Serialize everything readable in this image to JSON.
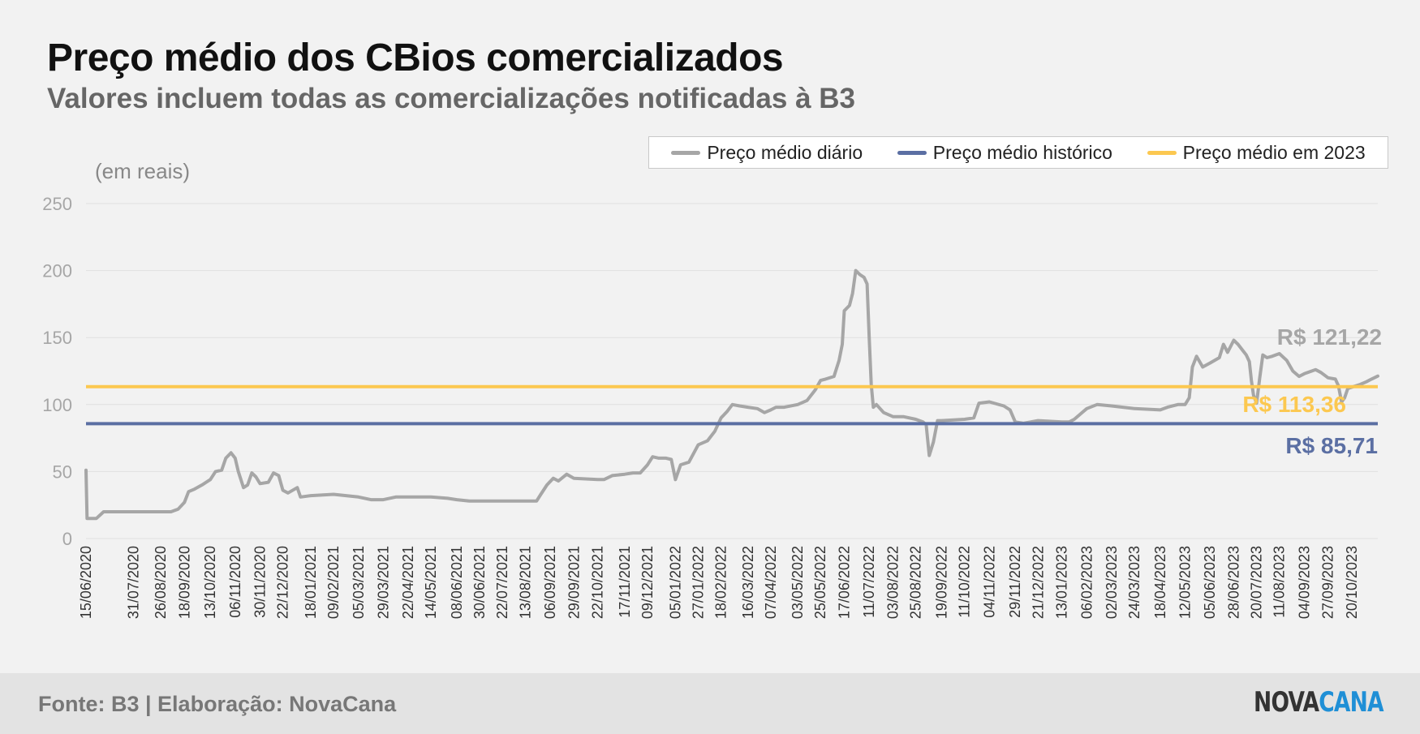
{
  "title": "Preço médio dos CBios comercializados",
  "subtitle": "Valores incluem todas as comercializações notificadas à B3",
  "units_label": "(em reais)",
  "legend": [
    {
      "label": "Preço médio diário",
      "color": "#a6a6a6"
    },
    {
      "label": "Preço médio histórico",
      "color": "#5b6fa3"
    },
    {
      "label": "Preço médio em 2023",
      "color": "#fcc850"
    }
  ],
  "footer": {
    "source": "Fonte: B3 | Elaboração: NovaCana",
    "logo_part1": "NOVA",
    "logo_part2": "CANA"
  },
  "colors": {
    "daily": "#a6a6a6",
    "historical": "#5b6fa3",
    "year2023": "#fcc850",
    "grid": "#e0e0e0",
    "tick_text": "#a6a6a6"
  },
  "chart_data": {
    "type": "line",
    "ylim": [
      0,
      250
    ],
    "yticks": [
      0,
      50,
      100,
      150,
      200,
      250
    ],
    "grid": true,
    "legend_position": "top-right",
    "x_start": "15/06/2020",
    "x_end": "14/11/2023",
    "xtick_labels": [
      "15/06/2020",
      "31/07/2020",
      "26/08/2020",
      "18/09/2020",
      "13/10/2020",
      "06/11/2020",
      "30/11/2020",
      "22/12/2020",
      "18/01/2021",
      "09/02/2021",
      "05/03/2021",
      "29/03/2021",
      "22/04/2021",
      "14/05/2021",
      "08/06/2021",
      "30/06/2021",
      "22/07/2021",
      "13/08/2021",
      "06/09/2021",
      "29/09/2021",
      "22/10/2021",
      "17/11/2021",
      "09/12/2021",
      "05/01/2022",
      "27/01/2022",
      "18/02/2022",
      "16/03/2022",
      "07/04/2022",
      "03/05/2022",
      "25/05/2022",
      "17/06/2022",
      "11/07/2022",
      "03/08/2022",
      "25/08/2022",
      "19/09/2022",
      "11/10/2022",
      "04/11/2022",
      "29/11/2022",
      "21/12/2022",
      "13/01/2023",
      "06/02/2023",
      "02/03/2023",
      "24/03/2023",
      "18/04/2023",
      "12/05/2023",
      "05/06/2023",
      "28/06/2023",
      "20/07/2023",
      "11/08/2023",
      "04/09/2023",
      "27/09/2023",
      "20/10/2023"
    ],
    "series": [
      {
        "name": "Preço médio diário",
        "points": [
          [
            "15/06/2020",
            51
          ],
          [
            "16/06/2020",
            15
          ],
          [
            "25/06/2020",
            15
          ],
          [
            "02/07/2020",
            20
          ],
          [
            "31/07/2020",
            20
          ],
          [
            "26/08/2020",
            20
          ],
          [
            "05/09/2020",
            20
          ],
          [
            "12/09/2020",
            22
          ],
          [
            "18/09/2020",
            27
          ],
          [
            "22/09/2020",
            35
          ],
          [
            "28/09/2020",
            37
          ],
          [
            "05/10/2020",
            40
          ],
          [
            "13/10/2020",
            44
          ],
          [
            "18/10/2020",
            50
          ],
          [
            "24/10/2020",
            51
          ],
          [
            "28/10/2020",
            60
          ],
          [
            "02/11/2020",
            64
          ],
          [
            "06/11/2020",
            60
          ],
          [
            "09/11/2020",
            50
          ],
          [
            "14/11/2020",
            38
          ],
          [
            "18/11/2020",
            40
          ],
          [
            "22/11/2020",
            49
          ],
          [
            "26/11/2020",
            46
          ],
          [
            "30/11/2020",
            41
          ],
          [
            "08/12/2020",
            42
          ],
          [
            "13/12/2020",
            49
          ],
          [
            "18/12/2020",
            47
          ],
          [
            "22/12/2020",
            36
          ],
          [
            "27/12/2020",
            34
          ],
          [
            "05/01/2021",
            38
          ],
          [
            "08/01/2021",
            31
          ],
          [
            "18/01/2021",
            32
          ],
          [
            "09/02/2021",
            33
          ],
          [
            "05/03/2021",
            31
          ],
          [
            "17/03/2021",
            29
          ],
          [
            "29/03/2021",
            29
          ],
          [
            "10/04/2021",
            31
          ],
          [
            "22/04/2021",
            31
          ],
          [
            "14/05/2021",
            31
          ],
          [
            "30/05/2021",
            30
          ],
          [
            "08/06/2021",
            29
          ],
          [
            "20/06/2021",
            28
          ],
          [
            "30/06/2021",
            28
          ],
          [
            "22/07/2021",
            28
          ],
          [
            "13/08/2021",
            28
          ],
          [
            "24/08/2021",
            28
          ],
          [
            "28/08/2021",
            33
          ],
          [
            "03/09/2021",
            40
          ],
          [
            "09/09/2021",
            45
          ],
          [
            "14/09/2021",
            43
          ],
          [
            "22/09/2021",
            48
          ],
          [
            "29/09/2021",
            45
          ],
          [
            "22/10/2021",
            44
          ],
          [
            "28/10/2021",
            44
          ],
          [
            "05/11/2021",
            47
          ],
          [
            "17/11/2021",
            48
          ],
          [
            "25/11/2021",
            49
          ],
          [
            "02/12/2021",
            49
          ],
          [
            "09/12/2021",
            55
          ],
          [
            "14/12/2021",
            61
          ],
          [
            "20/12/2021",
            60
          ],
          [
            "27/12/2021",
            60
          ],
          [
            "01/01/2022",
            59
          ],
          [
            "05/01/2022",
            44
          ],
          [
            "10/01/2022",
            55
          ],
          [
            "18/01/2022",
            57
          ],
          [
            "27/01/2022",
            70
          ],
          [
            "05/02/2022",
            73
          ],
          [
            "12/02/2022",
            80
          ],
          [
            "18/02/2022",
            90
          ],
          [
            "24/02/2022",
            95
          ],
          [
            "01/03/2022",
            100
          ],
          [
            "08/03/2022",
            99
          ],
          [
            "16/03/2022",
            98
          ],
          [
            "25/03/2022",
            97
          ],
          [
            "01/04/2022",
            94
          ],
          [
            "07/04/2022",
            96
          ],
          [
            "12/04/2022",
            98
          ],
          [
            "20/04/2022",
            98
          ],
          [
            "03/05/2022",
            100
          ],
          [
            "12/05/2022",
            103
          ],
          [
            "20/05/2022",
            111
          ],
          [
            "25/05/2022",
            118
          ],
          [
            "30/05/2022",
            119
          ],
          [
            "07/06/2022",
            121
          ],
          [
            "12/06/2022",
            133
          ],
          [
            "15/06/2022",
            145
          ],
          [
            "17/06/2022",
            170
          ],
          [
            "22/06/2022",
            174
          ],
          [
            "25/06/2022",
            183
          ],
          [
            "28/06/2022",
            200
          ],
          [
            "02/07/2022",
            197
          ],
          [
            "06/07/2022",
            195
          ],
          [
            "09/07/2022",
            190
          ],
          [
            "11/07/2022",
            150
          ],
          [
            "13/07/2022",
            115
          ],
          [
            "15/07/2022",
            98
          ],
          [
            "18/07/2022",
            100
          ],
          [
            "25/07/2022",
            94
          ],
          [
            "03/08/2022",
            91
          ],
          [
            "13/08/2022",
            91
          ],
          [
            "25/08/2022",
            89
          ],
          [
            "01/09/2022",
            87
          ],
          [
            "04/09/2022",
            85
          ],
          [
            "07/09/2022",
            62
          ],
          [
            "11/09/2022",
            72
          ],
          [
            "15/09/2022",
            88
          ],
          [
            "19/09/2022",
            88
          ],
          [
            "11/10/2022",
            89
          ],
          [
            "20/10/2022",
            90
          ],
          [
            "25/10/2022",
            101
          ],
          [
            "04/11/2022",
            102
          ],
          [
            "18/11/2022",
            99
          ],
          [
            "24/11/2022",
            96
          ],
          [
            "29/11/2022",
            87
          ],
          [
            "07/12/2022",
            86
          ],
          [
            "21/12/2022",
            88
          ],
          [
            "13/01/2023",
            87
          ],
          [
            "20/01/2023",
            87
          ],
          [
            "25/01/2023",
            89
          ],
          [
            "31/01/2023",
            93
          ],
          [
            "06/02/2023",
            97
          ],
          [
            "16/02/2023",
            100
          ],
          [
            "02/03/2023",
            99
          ],
          [
            "24/03/2023",
            97
          ],
          [
            "18/04/2023",
            96
          ],
          [
            "25/04/2023",
            98
          ],
          [
            "05/05/2023",
            100
          ],
          [
            "12/05/2023",
            100
          ],
          [
            "16/05/2023",
            105
          ],
          [
            "19/05/2023",
            128
          ],
          [
            "23/05/2023",
            136
          ],
          [
            "29/05/2023",
            128
          ],
          [
            "05/06/2023",
            131
          ],
          [
            "14/06/2023",
            135
          ],
          [
            "18/06/2023",
            145
          ],
          [
            "22/06/2023",
            139
          ],
          [
            "28/06/2023",
            148
          ],
          [
            "02/07/2023",
            145
          ],
          [
            "06/07/2023",
            141
          ],
          [
            "10/07/2023",
            137
          ],
          [
            "13/07/2023",
            132
          ],
          [
            "15/07/2023",
            118
          ],
          [
            "17/07/2023",
            107
          ],
          [
            "20/07/2023",
            101
          ],
          [
            "23/07/2023",
            120
          ],
          [
            "26/07/2023",
            137
          ],
          [
            "30/07/2023",
            135
          ],
          [
            "04/08/2023",
            136
          ],
          [
            "11/08/2023",
            138
          ],
          [
            "18/08/2023",
            133
          ],
          [
            "24/08/2023",
            125
          ],
          [
            "30/08/2023",
            121
          ],
          [
            "04/09/2023",
            123
          ],
          [
            "15/09/2023",
            126
          ],
          [
            "20/09/2023",
            124
          ],
          [
            "27/09/2023",
            120
          ],
          [
            "04/10/2023",
            119
          ],
          [
            "07/10/2023",
            114
          ],
          [
            "10/10/2023",
            102
          ],
          [
            "13/10/2023",
            105
          ],
          [
            "16/10/2023",
            112
          ],
          [
            "20/10/2023",
            113
          ],
          [
            "28/10/2023",
            115
          ],
          [
            "03/11/2023",
            117
          ],
          [
            "08/11/2023",
            119
          ],
          [
            "14/11/2023",
            121.22
          ]
        ]
      },
      {
        "name": "Preço médio histórico",
        "constant": 85.71
      },
      {
        "name": "Preço médio em 2023",
        "constant": 113.36
      }
    ],
    "annotations": [
      {
        "text": "R$ 121,22",
        "y": 150,
        "series": "Preço médio diário"
      },
      {
        "text": "R$ 113,36",
        "y": 100,
        "series": "Preço médio em 2023"
      },
      {
        "text": "R$ 85,71",
        "y": 69,
        "series": "Preço médio histórico"
      }
    ]
  }
}
